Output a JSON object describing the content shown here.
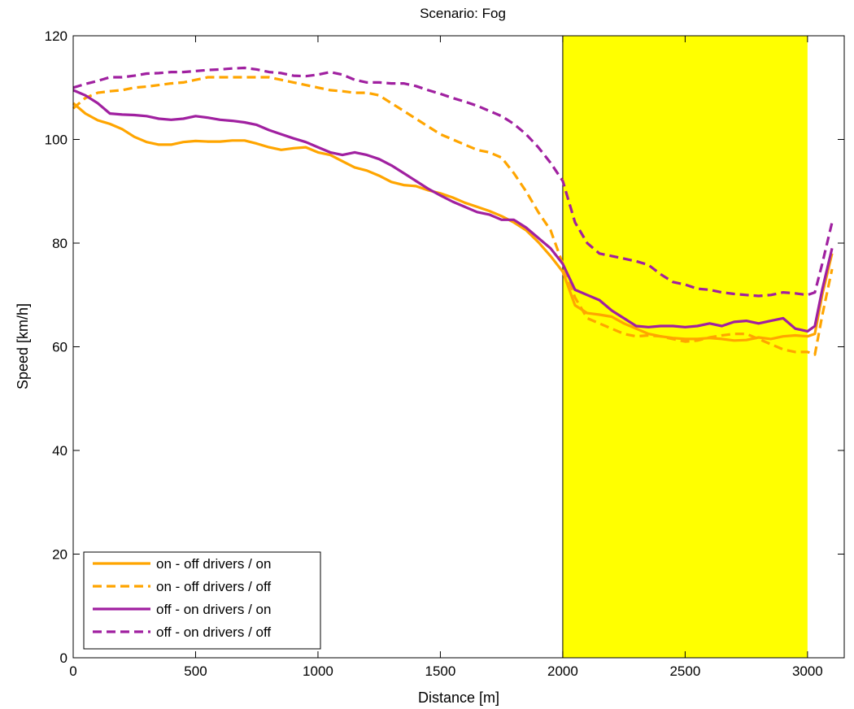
{
  "chart_data": {
    "type": "line",
    "title": "Scenario: Fog",
    "xlabel": "Distance [m]",
    "ylabel": "Speed [km/h]",
    "xlim": [
      0,
      3150
    ],
    "ylim": [
      0,
      120
    ],
    "xticks": [
      0,
      500,
      1000,
      1500,
      2000,
      2500,
      3000
    ],
    "yticks": [
      0,
      20,
      40,
      60,
      80,
      100,
      120
    ],
    "grid": false,
    "legend_position": "bottom-left",
    "highlight_region": {
      "x_start": 2000,
      "x_end": 3000,
      "color": "#ffff00"
    },
    "series": [
      {
        "name": "on - off drivers / on",
        "color": "#ffa500",
        "dash": "solid",
        "x": [
          0,
          50,
          100,
          150,
          200,
          250,
          300,
          350,
          400,
          450,
          500,
          550,
          600,
          650,
          700,
          750,
          800,
          850,
          900,
          950,
          1000,
          1050,
          1100,
          1150,
          1200,
          1250,
          1300,
          1350,
          1400,
          1450,
          1500,
          1550,
          1600,
          1650,
          1700,
          1750,
          1800,
          1850,
          1900,
          1950,
          2000,
          2050,
          2100,
          2150,
          2200,
          2250,
          2300,
          2350,
          2400,
          2450,
          2500,
          2550,
          2600,
          2650,
          2700,
          2750,
          2800,
          2850,
          2900,
          2950,
          3000,
          3030,
          3060,
          3100
        ],
        "values": [
          107,
          105,
          103.7,
          103,
          102,
          100.5,
          99.5,
          99,
          99,
          99.5,
          99.7,
          99.6,
          99.6,
          99.8,
          99.8,
          99.2,
          98.5,
          98,
          98.3,
          98.5,
          97.5,
          97,
          95.8,
          94.6,
          94,
          93,
          91.8,
          91.2,
          91,
          90.2,
          89.6,
          88.8,
          87.8,
          87,
          86.2,
          85.2,
          84,
          82.5,
          80.2,
          77.5,
          74.5,
          68,
          66.5,
          66.2,
          65.8,
          64.5,
          63.5,
          62.5,
          62,
          61.7,
          61.5,
          61.5,
          61.7,
          61.5,
          61.2,
          61.3,
          61.8,
          61.5,
          62,
          62.2,
          62,
          62.5,
          70,
          78
        ]
      },
      {
        "name": "on - off drivers / off",
        "color": "#ffa500",
        "dash": "dashed",
        "x": [
          0,
          50,
          100,
          150,
          200,
          250,
          300,
          350,
          400,
          450,
          500,
          550,
          600,
          650,
          700,
          750,
          800,
          850,
          900,
          950,
          1000,
          1050,
          1100,
          1150,
          1200,
          1250,
          1300,
          1350,
          1400,
          1450,
          1500,
          1550,
          1600,
          1650,
          1700,
          1750,
          1800,
          1850,
          1900,
          1950,
          2000,
          2050,
          2100,
          2150,
          2200,
          2250,
          2300,
          2350,
          2400,
          2450,
          2500,
          2550,
          2600,
          2650,
          2700,
          2750,
          2800,
          2850,
          2900,
          2950,
          3000,
          3030,
          3060,
          3100
        ],
        "values": [
          106,
          108,
          109,
          109.3,
          109.5,
          110,
          110.2,
          110.5,
          110.8,
          111,
          111.5,
          112,
          112,
          112,
          112,
          112,
          112,
          111.5,
          111,
          110.5,
          110,
          109.5,
          109.3,
          109,
          109,
          108.5,
          107,
          105.5,
          104,
          102.5,
          101,
          100,
          99,
          98,
          97.5,
          96.5,
          93.5,
          90,
          86,
          82.5,
          76,
          69.5,
          65.5,
          64.5,
          63.5,
          62.5,
          62,
          62.2,
          62,
          61.5,
          61,
          61.2,
          61.8,
          62.2,
          62.5,
          62.5,
          61.5,
          60.5,
          59.5,
          59,
          59,
          58.5,
          66,
          75
        ]
      },
      {
        "name": "off - on drivers / on",
        "color": "#a020a0",
        "dash": "solid",
        "x": [
          0,
          50,
          100,
          150,
          200,
          250,
          300,
          350,
          400,
          450,
          500,
          550,
          600,
          650,
          700,
          750,
          800,
          850,
          900,
          950,
          1000,
          1050,
          1100,
          1150,
          1200,
          1250,
          1300,
          1350,
          1400,
          1450,
          1500,
          1550,
          1600,
          1650,
          1700,
          1750,
          1800,
          1850,
          1900,
          1950,
          2000,
          2050,
          2100,
          2150,
          2200,
          2250,
          2300,
          2350,
          2400,
          2450,
          2500,
          2550,
          2600,
          2650,
          2700,
          2750,
          2800,
          2850,
          2900,
          2950,
          3000,
          3030,
          3060,
          3100
        ],
        "values": [
          109.5,
          108.5,
          107,
          105,
          104.8,
          104.7,
          104.5,
          104,
          103.8,
          104,
          104.5,
          104.2,
          103.8,
          103.6,
          103.3,
          102.8,
          101.8,
          101,
          100.2,
          99.5,
          98.5,
          97.5,
          97,
          97.5,
          97,
          96.2,
          95,
          93.5,
          92,
          90.5,
          89.2,
          88,
          87,
          86,
          85.5,
          84.5,
          84.5,
          83,
          81,
          79,
          76,
          71,
          70,
          69,
          67,
          65.5,
          64,
          63.8,
          64,
          64,
          63.8,
          64,
          64.5,
          64,
          64.8,
          65,
          64.5,
          65,
          65.5,
          63.5,
          63,
          64,
          71,
          79
        ]
      },
      {
        "name": "off - on drivers / off",
        "color": "#a020a0",
        "dash": "dashed",
        "x": [
          0,
          50,
          100,
          150,
          200,
          250,
          300,
          350,
          400,
          450,
          500,
          550,
          600,
          650,
          700,
          750,
          800,
          850,
          900,
          950,
          1000,
          1050,
          1100,
          1150,
          1200,
          1250,
          1300,
          1350,
          1400,
          1450,
          1500,
          1550,
          1600,
          1650,
          1700,
          1750,
          1800,
          1850,
          1900,
          1950,
          2000,
          2050,
          2100,
          2150,
          2200,
          2250,
          2300,
          2350,
          2400,
          2450,
          2500,
          2550,
          2600,
          2650,
          2700,
          2750,
          2800,
          2850,
          2900,
          2950,
          3000,
          3030,
          3060,
          3100
        ],
        "values": [
          110,
          110.7,
          111.3,
          112,
          112,
          112.3,
          112.7,
          112.8,
          113,
          113,
          113.2,
          113.4,
          113.5,
          113.7,
          113.8,
          113.5,
          113,
          112.8,
          112.3,
          112.2,
          112.5,
          113,
          112.5,
          111.5,
          111,
          111,
          110.8,
          110.8,
          110.3,
          109.5,
          108.8,
          108,
          107.3,
          106.5,
          105.5,
          104.5,
          103,
          101,
          98.5,
          95.5,
          92,
          84,
          80,
          78,
          77.5,
          77,
          76.5,
          75.8,
          74,
          72.5,
          72,
          71.2,
          71,
          70.5,
          70.2,
          70,
          69.8,
          70,
          70.5,
          70.3,
          70,
          70.5,
          76,
          84
        ]
      }
    ]
  }
}
